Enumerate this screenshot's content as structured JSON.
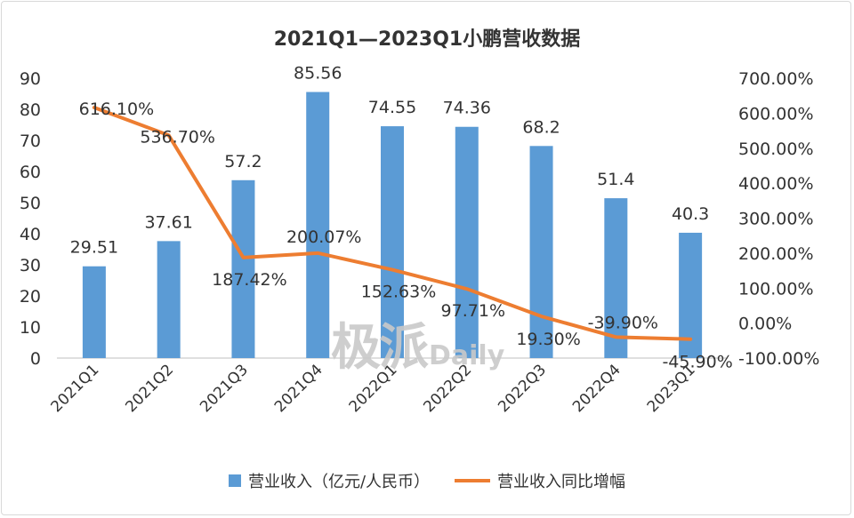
{
  "chart_data": {
    "type": "bar+line",
    "title": "2021Q1—2023Q1小鹏营收数据",
    "categories": [
      "2021Q1",
      "2021Q2",
      "2021Q3",
      "2021Q4",
      "2022Q1",
      "2022Q2",
      "2022Q3",
      "2022Q4",
      "2023Q1"
    ],
    "series": [
      {
        "name": "营业收入（亿元/人民币）",
        "type": "bar",
        "axis": "left",
        "values": [
          29.51,
          37.61,
          57.2,
          85.56,
          74.55,
          74.36,
          68.2,
          51.4,
          40.3
        ],
        "labels": [
          "29.51",
          "37.61",
          "57.2",
          "85.56",
          "74.55",
          "74.36",
          "68.2",
          "51.4",
          "40.3"
        ]
      },
      {
        "name": "营业收入同比增幅",
        "type": "line",
        "axis": "right",
        "values": [
          616.1,
          536.7,
          187.42,
          200.07,
          152.63,
          97.71,
          19.3,
          -39.9,
          -45.9
        ],
        "labels": [
          "616.10%",
          "536.70%",
          "187.42%",
          "200.07%",
          "152.63%",
          "97.71%",
          "19.30%",
          "-39.90%",
          "-45.90%"
        ]
      }
    ],
    "y_left": {
      "min": 0,
      "max": 90,
      "ticks": [
        "0",
        "10",
        "20",
        "30",
        "40",
        "50",
        "60",
        "70",
        "80",
        "90"
      ]
    },
    "y_right": {
      "min": -100,
      "max": 700,
      "ticks": [
        "-100.00%",
        "0.00%",
        "100.00%",
        "200.00%",
        "300.00%",
        "400.00%",
        "500.00%",
        "600.00%",
        "700.00%"
      ]
    },
    "grid": false,
    "legend_position": "bottom",
    "colors": {
      "bar": "#5b9bd5",
      "line": "#ed7d31",
      "text": "#333333",
      "axis": "#bfbfbf"
    }
  },
  "watermark": {
    "cn": "极派",
    "en": "Daily"
  }
}
